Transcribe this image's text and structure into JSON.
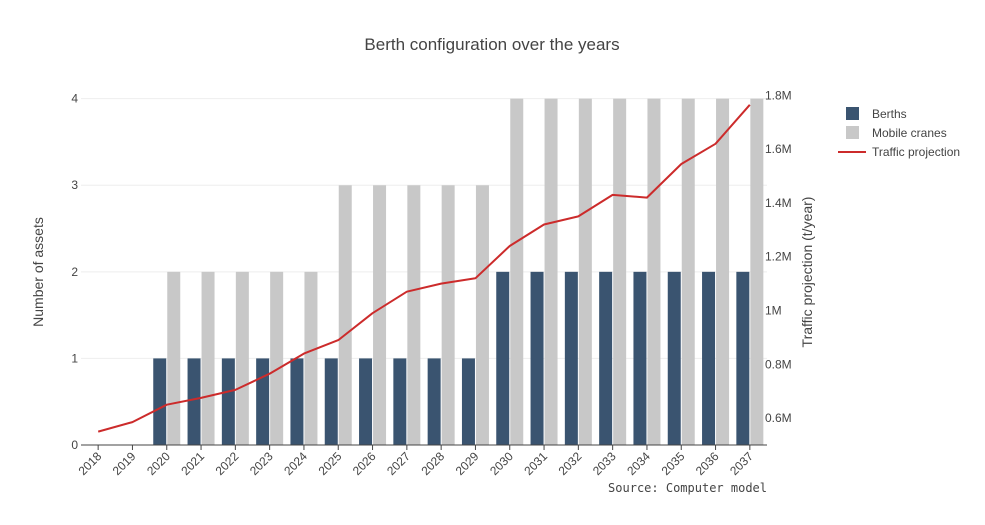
{
  "chart_data": {
    "type": "bar",
    "title": "Berth configuration over the years",
    "source": "Source: Computer model",
    "categories": [
      "2018",
      "2019",
      "2020",
      "2021",
      "2022",
      "2023",
      "2024",
      "2025",
      "2026",
      "2027",
      "2028",
      "2029",
      "2030",
      "2031",
      "2032",
      "2033",
      "2034",
      "2035",
      "2036",
      "2037"
    ],
    "ylabel": "Number of assets",
    "ylim": [
      0,
      4.1
    ],
    "yticks": [
      "0",
      "1",
      "2",
      "3",
      "4"
    ],
    "y2label": "Traffic projection (t/year)",
    "y2lim": [
      500000,
      1820000
    ],
    "y2ticks": [
      "0.6M",
      "0.8M",
      "1M",
      "1.2M",
      "1.4M",
      "1.6M",
      "1.8M"
    ],
    "grid": true,
    "legend_position": "top-right",
    "series": [
      {
        "name": "Berths",
        "type": "bar",
        "axis": "left",
        "color": "#3a5470",
        "values": [
          0,
          0,
          1,
          1,
          1,
          1,
          1,
          1,
          1,
          1,
          1,
          1,
          2,
          2,
          2,
          2,
          2,
          2,
          2,
          2
        ]
      },
      {
        "name": "Mobile cranes",
        "type": "bar",
        "axis": "left",
        "color": "#c8c8c8",
        "values": [
          0,
          0,
          2,
          2,
          2,
          2,
          2,
          3,
          3,
          3,
          3,
          3,
          4,
          4,
          4,
          4,
          4,
          4,
          4,
          4
        ]
      },
      {
        "name": "Traffic projection",
        "type": "line",
        "axis": "right",
        "color": "#cc2b2b",
        "values": [
          550000,
          585000,
          650000,
          675000,
          705000,
          765000,
          840000,
          890000,
          990000,
          1070000,
          1100000,
          1120000,
          1240000,
          1320000,
          1350000,
          1430000,
          1420000,
          1545000,
          1620000,
          1765000
        ]
      }
    ]
  }
}
